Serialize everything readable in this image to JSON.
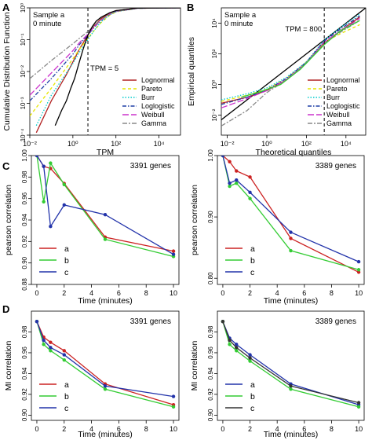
{
  "chart_data": [
    {
      "panel": "A",
      "type": "line",
      "annotation": "Sample a\n0 minute",
      "vline_label": "TPM = 5",
      "vline_x": 5,
      "xlabel": "TPM",
      "ylabel": "Cumulative Distribution Function",
      "x_scale": "log",
      "y_scale": "log",
      "xlim": [
        0.01,
        100000
      ],
      "ylim": [
        0.0001,
        1
      ],
      "x_ticks": [
        0.01,
        1,
        100,
        10000
      ],
      "x_tick_labels": [
        "10⁻²",
        "10⁰",
        "10²",
        "10⁴"
      ],
      "y_ticks": [
        0.0001,
        0.001,
        0.01,
        0.1,
        1
      ],
      "y_tick_labels": [
        "10⁻⁴",
        "10⁻³",
        "10⁻²",
        "10⁻¹",
        "10⁰"
      ],
      "legend_position": "bottom-right",
      "series": [
        {
          "name": "Lognormal",
          "color": "#b22222",
          "dash": "solid",
          "x": [
            0.02,
            0.1,
            0.5,
            1,
            2,
            5,
            10,
            20,
            50,
            100,
            1000,
            100000
          ],
          "y": [
            0.00012,
            0.0012,
            0.008,
            0.02,
            0.05,
            0.14,
            0.28,
            0.45,
            0.68,
            0.82,
            0.98,
            1
          ]
        },
        {
          "name": "Pareto",
          "color": "#e6e600",
          "dash": "dash",
          "x": [
            0.01,
            0.1,
            1,
            2,
            5,
            10,
            20,
            50,
            100,
            1000,
            100000
          ],
          "y": [
            0.0004,
            0.003,
            0.025,
            0.05,
            0.11,
            0.2,
            0.34,
            0.58,
            0.75,
            0.97,
            1
          ]
        },
        {
          "name": "Burr",
          "color": "#00cccc",
          "dash": "dot",
          "x": [
            0.02,
            0.1,
            1,
            2,
            5,
            10,
            20,
            50,
            100,
            1000,
            100000
          ],
          "y": [
            0.0002,
            0.0018,
            0.018,
            0.04,
            0.1,
            0.2,
            0.36,
            0.6,
            0.76,
            0.97,
            1
          ]
        },
        {
          "name": "Loglogistic",
          "color": "#1f3fa6",
          "dash": "dashdot",
          "x": [
            0.01,
            0.1,
            1,
            2,
            5,
            10,
            20,
            50,
            100,
            1000,
            100000
          ],
          "y": [
            0.0012,
            0.006,
            0.035,
            0.07,
            0.14,
            0.25,
            0.4,
            0.62,
            0.77,
            0.97,
            1
          ]
        },
        {
          "name": "Weibull",
          "color": "#cc33cc",
          "dash": "longdash",
          "x": [
            0.01,
            0.1,
            1,
            2,
            5,
            10,
            20,
            50,
            100,
            1000,
            100000
          ],
          "y": [
            0.0018,
            0.009,
            0.045,
            0.08,
            0.15,
            0.26,
            0.41,
            0.63,
            0.78,
            0.97,
            1
          ]
        },
        {
          "name": "Gamma",
          "color": "#888888",
          "dash": "twodash",
          "x": [
            0.01,
            0.1,
            1,
            2,
            5,
            10,
            20,
            50,
            100,
            1000,
            100000
          ],
          "y": [
            0.006,
            0.022,
            0.075,
            0.11,
            0.18,
            0.28,
            0.42,
            0.63,
            0.78,
            0.97,
            1
          ]
        },
        {
          "name": "",
          "color": "#000000",
          "dash": "solid",
          "x": [
            0.15,
            0.3,
            0.5,
            0.8,
            1.2,
            2,
            3,
            5,
            8,
            12,
            20,
            50,
            100,
            1000,
            100000
          ],
          "y": [
            0.0002,
            0.0006,
            0.0012,
            0.003,
            0.006,
            0.02,
            0.05,
            0.14,
            0.26,
            0.38,
            0.5,
            0.7,
            0.82,
            0.98,
            1
          ]
        }
      ]
    },
    {
      "panel": "B",
      "type": "line",
      "annotation": "Sample a\n0 minute",
      "vline_label": "TPM = 800",
      "vline_x": 800,
      "xlabel": "Theoretical quantiles",
      "ylabel": "Empirical quantiles",
      "x_scale": "log",
      "y_scale": "log",
      "xlim": [
        0.005,
        100000
      ],
      "ylim": [
        0.0005,
        100000
      ],
      "x_ticks": [
        0.01,
        1,
        100,
        10000
      ],
      "x_tick_labels": [
        "10⁻²",
        "10⁰",
        "10²",
        "10⁴"
      ],
      "y_ticks": [
        0.01,
        1,
        100,
        10000
      ],
      "y_tick_labels": [
        "10⁻²",
        "10⁰",
        "10²",
        "10⁴"
      ],
      "legend_position": "bottom-right",
      "series": [
        {
          "name": "",
          "color": "#000000",
          "dash": "solid",
          "x": [
            0.005,
            100000
          ],
          "y": [
            0.005,
            100000
          ]
        },
        {
          "name": "Lognormal",
          "color": "#b22222",
          "dash": "solid",
          "x": [
            0.005,
            0.1,
            1,
            10,
            100,
            800,
            5000,
            50000
          ],
          "y": [
            0.06,
            0.15,
            0.4,
            2,
            25,
            500,
            3000,
            25000
          ]
        },
        {
          "name": "Pareto",
          "color": "#e6e600",
          "dash": "dash",
          "x": [
            0.005,
            0.1,
            1,
            10,
            100,
            800,
            5000,
            50000
          ],
          "y": [
            0.08,
            0.2,
            0.5,
            2.5,
            30,
            600,
            2000,
            8000
          ]
        },
        {
          "name": "Burr",
          "color": "#00cccc",
          "dash": "dot",
          "x": [
            0.005,
            0.1,
            1,
            10,
            100,
            800,
            5000,
            50000
          ],
          "y": [
            0.1,
            0.25,
            0.6,
            3,
            30,
            800,
            5000,
            40000
          ]
        },
        {
          "name": "Loglogistic",
          "color": "#1f3fa6",
          "dash": "dashdot",
          "x": [
            0.005,
            0.1,
            1,
            10,
            100,
            800,
            5000,
            50000
          ],
          "y": [
            0.05,
            0.15,
            0.45,
            2.5,
            28,
            700,
            4000,
            30000
          ]
        },
        {
          "name": "Weibull",
          "color": "#cc33cc",
          "dash": "longdash",
          "x": [
            0.005,
            0.1,
            1,
            10,
            100,
            800,
            5000,
            50000
          ],
          "y": [
            0.03,
            0.12,
            0.4,
            2.2,
            26,
            600,
            3000,
            20000
          ]
        },
        {
          "name": "Gamma",
          "color": "#888888",
          "dash": "twodash",
          "x": [
            0.005,
            0.1,
            1,
            10,
            100,
            800,
            5000,
            50000
          ],
          "y": [
            0.002,
            0.02,
            0.3,
            2,
            25,
            500,
            2500,
            15000
          ]
        },
        {
          "name": "",
          "color": "#33cc33",
          "dash": "solid",
          "x": [
            0.05,
            0.5,
            5,
            50,
            800,
            5000,
            50000
          ],
          "y": [
            0.15,
            0.35,
            1,
            10,
            400,
            3000,
            15000
          ]
        }
      ]
    },
    {
      "panel": "C",
      "type": "line",
      "annotation": "3391 genes",
      "xlabel": "Time (minutes)",
      "ylabel": "pearson correlation",
      "xlim": [
        -0.4,
        10.4
      ],
      "ylim": [
        0.88,
        1.0
      ],
      "x_ticks": [
        0,
        2,
        4,
        6,
        8,
        10
      ],
      "y_ticks": [
        0.88,
        0.9,
        0.92,
        0.94,
        0.96,
        0.98,
        1.0
      ],
      "y_tick_labels": [
        "0.88",
        "0.90",
        "0.92",
        "0.94",
        "0.96",
        "0.98",
        "1.00"
      ],
      "legend_position": "bottom-left",
      "series": [
        {
          "name": "a",
          "color": "#cc2222",
          "x": [
            0,
            0.5,
            1,
            2,
            5,
            10
          ],
          "y": [
            1.0,
            0.99,
            0.988,
            0.974,
            0.924,
            0.911
          ]
        },
        {
          "name": "b",
          "color": "#33cc33",
          "x": [
            0,
            0.5,
            1,
            2,
            5,
            10
          ],
          "y": [
            1.0,
            0.957,
            0.993,
            0.973,
            0.922,
            0.906
          ]
        },
        {
          "name": "c",
          "color": "#2233aa",
          "x": [
            0,
            0.5,
            1,
            2,
            5,
            10
          ],
          "y": [
            1.0,
            0.99,
            0.934,
            0.954,
            0.945,
            0.908
          ]
        }
      ]
    },
    {
      "panel": "C",
      "type": "line",
      "annotation": "3389 genes",
      "xlabel": "Time (minutes)",
      "ylabel": "pearson correlation",
      "xlim": [
        -0.4,
        10.4
      ],
      "ylim": [
        0.79,
        1.0
      ],
      "x_ticks": [
        0,
        2,
        4,
        6,
        8,
        10
      ],
      "y_ticks": [
        0.8,
        0.9,
        1.0
      ],
      "y_tick_labels": [
        "0.80",
        "0.90",
        "1.00"
      ],
      "legend_position": "bottom-left",
      "series": [
        {
          "name": "a",
          "color": "#cc2222",
          "x": [
            0,
            0.5,
            1,
            2,
            5,
            10
          ],
          "y": [
            1.0,
            0.99,
            0.975,
            0.965,
            0.865,
            0.81
          ]
        },
        {
          "name": "b",
          "color": "#33cc33",
          "x": [
            0,
            0.5,
            1,
            2,
            5,
            10
          ],
          "y": [
            1.0,
            0.95,
            0.955,
            0.93,
            0.845,
            0.814
          ]
        },
        {
          "name": "c",
          "color": "#2233aa",
          "x": [
            0,
            0.5,
            1,
            2,
            5,
            10
          ],
          "y": [
            1.0,
            0.955,
            0.96,
            0.94,
            0.875,
            0.827
          ]
        }
      ]
    },
    {
      "panel": "D",
      "type": "line",
      "annotation": "3391 genes",
      "xlabel": "Time (minutes)",
      "ylabel": "MI correlation",
      "xlim": [
        -0.4,
        10.4
      ],
      "ylim": [
        0.895,
        1.0
      ],
      "x_ticks": [
        0,
        2,
        4,
        6,
        8,
        10
      ],
      "y_ticks": [
        0.9,
        0.92,
        0.94,
        0.96,
        0.98
      ],
      "y_tick_labels": [
        "0.90",
        "0.92",
        "0.94",
        "0.96",
        "0.98"
      ],
      "legend_position": "bottom-left",
      "series": [
        {
          "name": "a",
          "color": "#cc2222",
          "x": [
            0,
            0.5,
            1,
            2,
            5,
            10
          ],
          "y": [
            0.99,
            0.975,
            0.97,
            0.962,
            0.93,
            0.91
          ]
        },
        {
          "name": "b",
          "color": "#33cc33",
          "x": [
            0,
            0.5,
            1,
            2,
            5,
            10
          ],
          "y": [
            0.99,
            0.968,
            0.962,
            0.953,
            0.925,
            0.908
          ]
        },
        {
          "name": "c",
          "color": "#2233aa",
          "x": [
            0,
            0.5,
            1,
            2,
            5,
            10
          ],
          "y": [
            0.99,
            0.972,
            0.965,
            0.958,
            0.928,
            0.918
          ]
        }
      ]
    },
    {
      "panel": "D",
      "type": "line",
      "annotation": "3389 genes",
      "xlabel": "Time (minutes)",
      "ylabel": "MI correlation",
      "xlim": [
        -0.4,
        10.4
      ],
      "ylim": [
        0.895,
        1.0
      ],
      "x_ticks": [
        0,
        2,
        4,
        6,
        8,
        10
      ],
      "y_ticks": [
        0.9,
        0.92,
        0.94,
        0.96,
        0.98
      ],
      "y_tick_labels": [
        "0.90",
        "0.92",
        "0.94",
        "0.96",
        "0.98"
      ],
      "legend_position": "bottom-left",
      "series": [
        {
          "name": "a",
          "color": "#2233aa",
          "x": [
            0,
            0.5,
            1,
            2,
            5,
            10
          ],
          "y": [
            0.99,
            0.974,
            0.968,
            0.958,
            0.93,
            0.91
          ]
        },
        {
          "name": "b",
          "color": "#33cc33",
          "x": [
            0,
            0.5,
            1,
            2,
            5,
            10
          ],
          "y": [
            0.99,
            0.968,
            0.962,
            0.952,
            0.925,
            0.908
          ]
        },
        {
          "name": "c",
          "color": "#333333",
          "x": [
            0,
            0.5,
            1,
            2,
            5,
            10
          ],
          "y": [
            0.99,
            0.972,
            0.965,
            0.955,
            0.928,
            0.912
          ]
        }
      ]
    }
  ]
}
